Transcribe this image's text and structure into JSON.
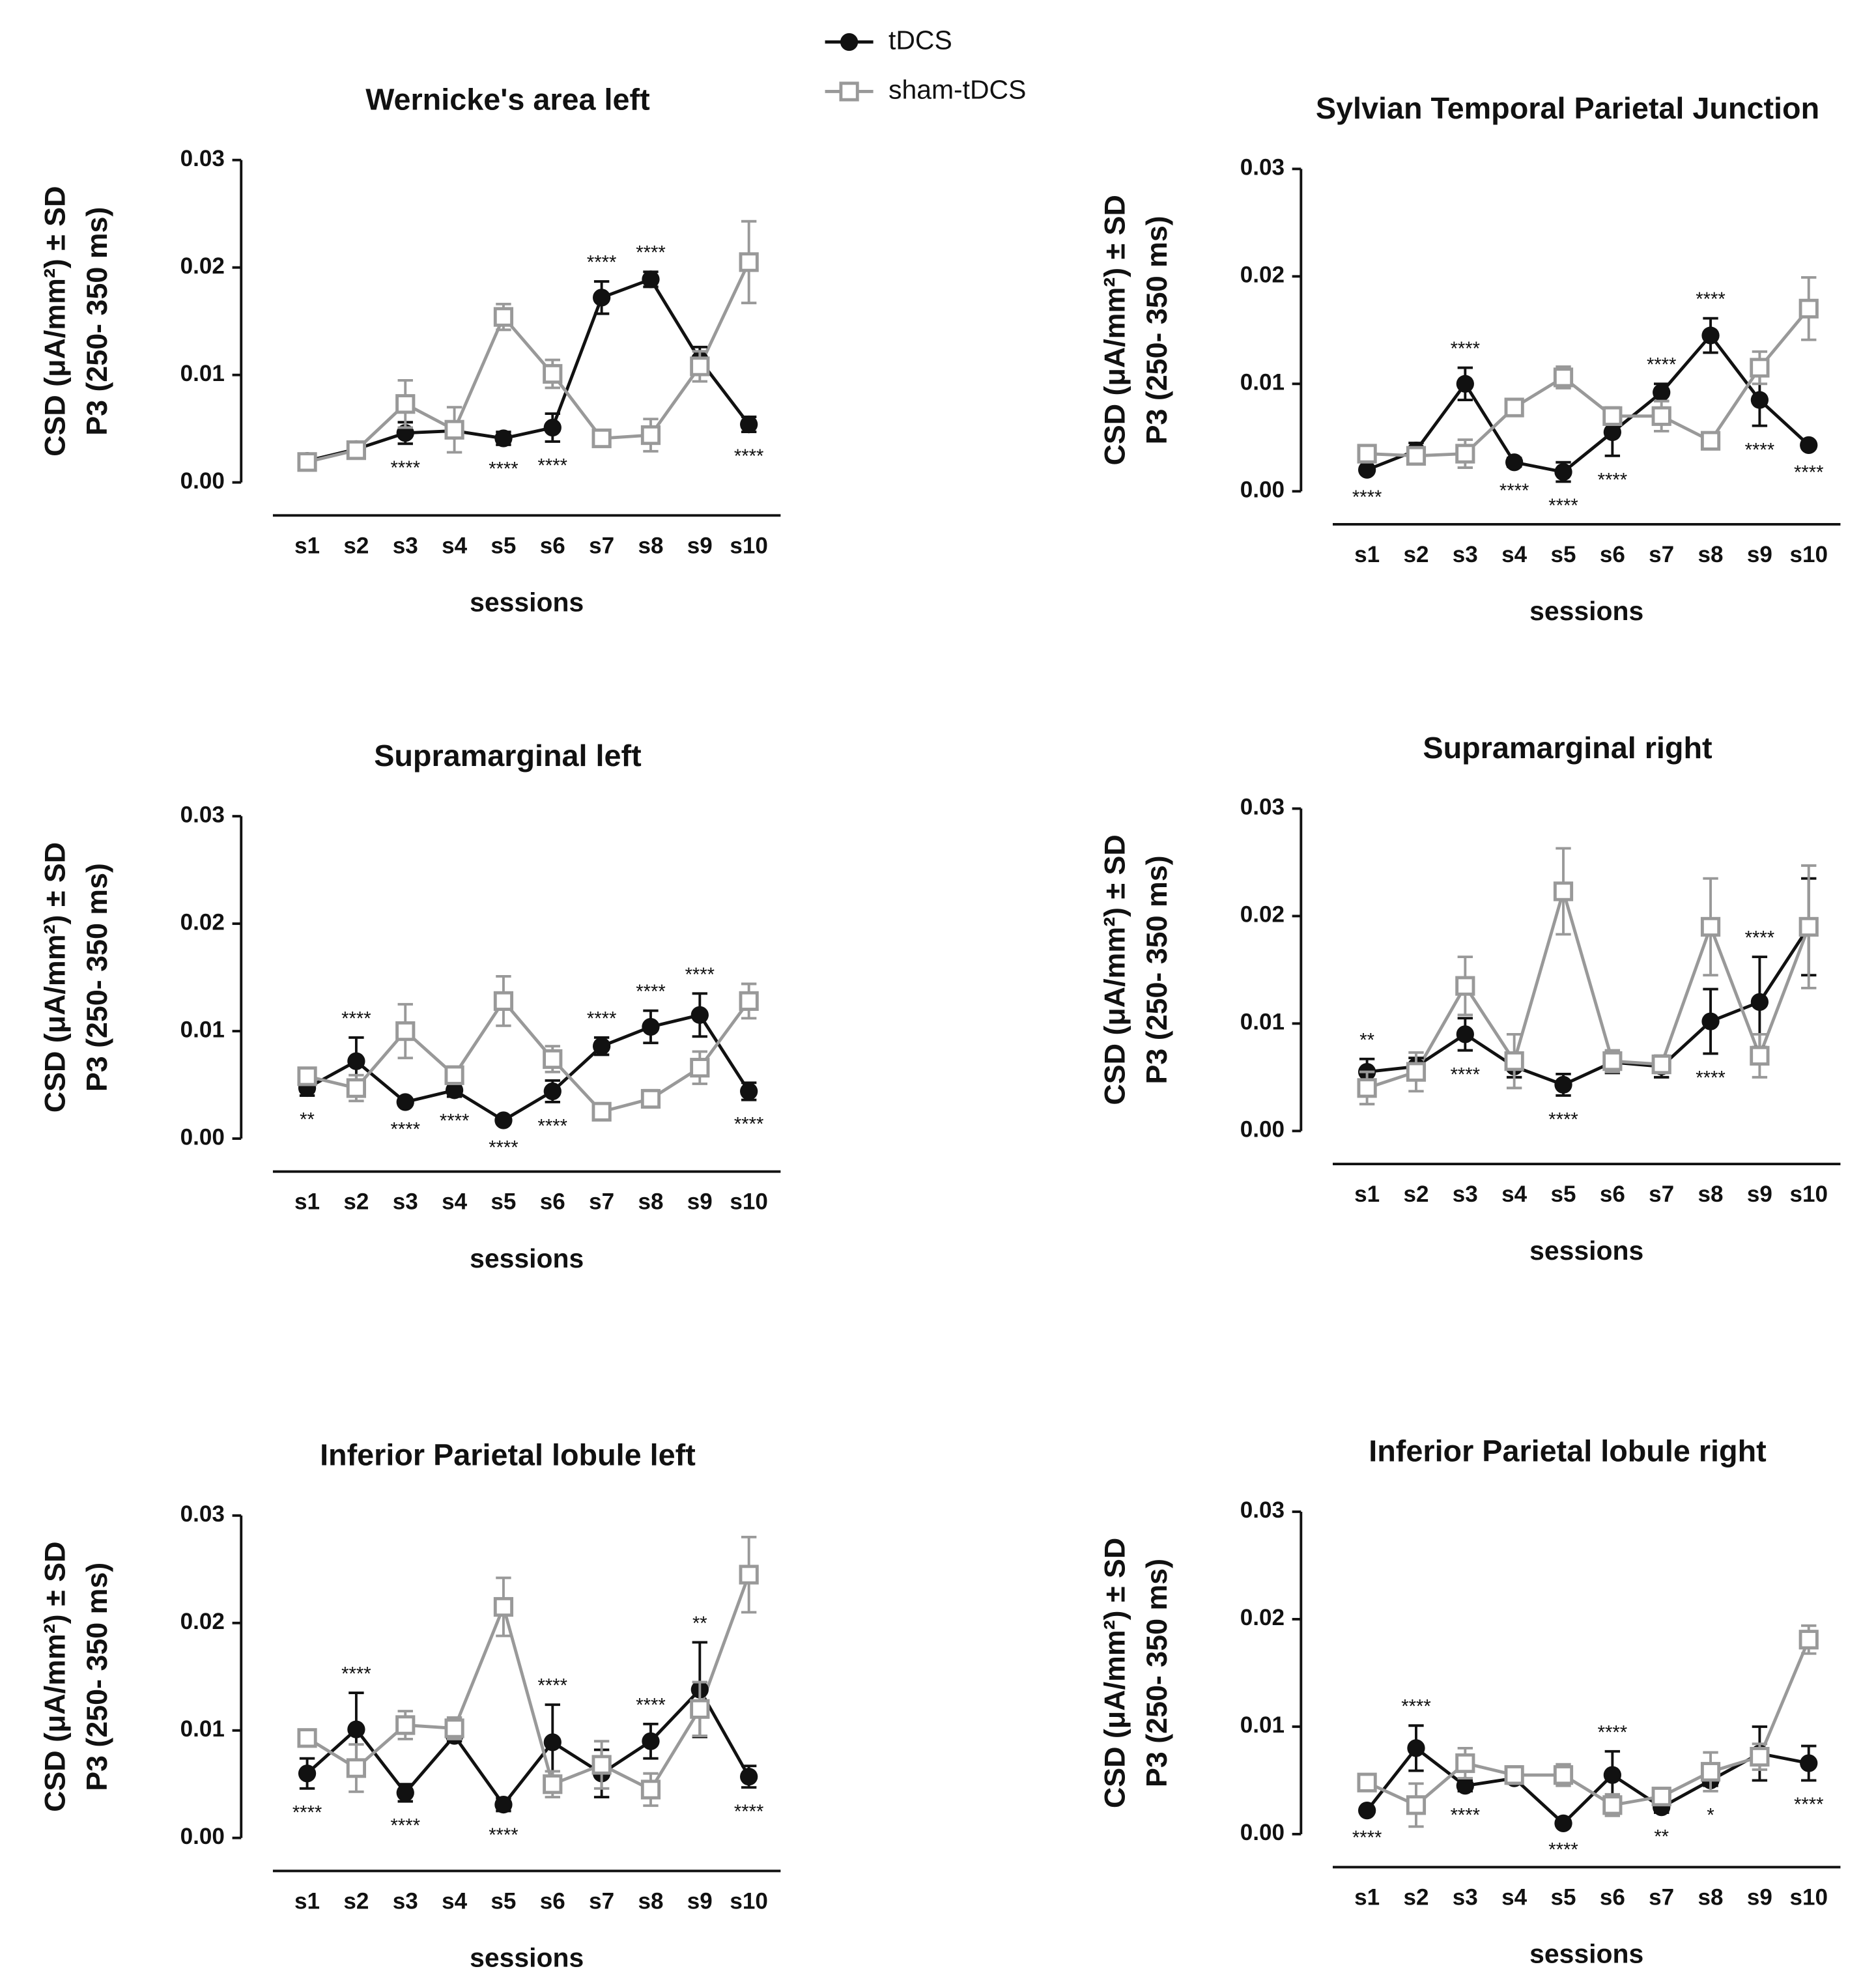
{
  "chart_data": [
    {
      "type": "line",
      "title": "Wernicke's area left",
      "ylabel": [
        "CSD (μA/mm²) ± SD",
        "P3 (250- 350 ms)"
      ],
      "xlabel": "sessions",
      "categories": [
        "s1",
        "s2",
        "s3",
        "s4",
        "s5",
        "s6",
        "s7",
        "s8",
        "s9",
        "s10"
      ],
      "ylim": [
        0,
        0.03
      ],
      "yticks": [
        {
          "value": 0,
          "label": "0.00"
        },
        0.01,
        0.02,
        0.03
      ],
      "series": [
        {
          "name": "tDCS",
          "color": "#111111",
          "values": [
            0.002,
            0.0031,
            0.0046,
            0.0048,
            0.0041,
            0.0051,
            0.0172,
            0.0189,
            0.0114,
            0.0054
          ],
          "errors": [
            0.0003,
            0.0003,
            0.001,
            0.0005,
            0.0006,
            0.0013,
            0.0015,
            0.0007,
            0.0012,
            0.0007
          ]
        },
        {
          "name": "sham-tDCS",
          "color": "#999999",
          "values": [
            0.0019,
            0.003,
            0.0073,
            0.0049,
            0.0154,
            0.0101,
            0.0041,
            0.0044,
            0.0108,
            0.0205
          ],
          "errors": [
            0.0003,
            0.0003,
            0.0022,
            0.0021,
            0.0012,
            0.0013,
            0.0003,
            0.0015,
            0.0014,
            0.0038
          ]
        }
      ],
      "significance": [
        null,
        null,
        "****",
        null,
        "****",
        "****",
        "****",
        "****",
        null,
        "****"
      ]
    },
    {
      "type": "line",
      "title": "Sylvian Temporal Parietal Junction",
      "ylabel": [
        "CSD (μA/mm²) ± SD",
        "P3 (250- 350 ms)"
      ],
      "xlabel": "sessions",
      "categories": [
        "s1",
        "s2",
        "s3",
        "s4",
        "s5",
        "s6",
        "s7",
        "s8",
        "s9",
        "s10"
      ],
      "ylim": [
        0,
        0.03
      ],
      "yticks": [
        {
          "value": 0,
          "label": "0.00"
        },
        0.01,
        0.02,
        0.03
      ],
      "series": [
        {
          "name": "tDCS",
          "color": "#111111",
          "values": [
            0.002,
            0.0038,
            0.01,
            0.0027,
            0.0018,
            0.0055,
            0.0092,
            0.0145,
            0.0085,
            0.0043
          ],
          "errors": [
            0.0003,
            0.0007,
            0.0015,
            0.0004,
            0.0009,
            0.0022,
            0.0008,
            0.0016,
            0.0024,
            0.0003
          ]
        },
        {
          "name": "sham-tDCS",
          "color": "#999999",
          "values": [
            0.0035,
            0.0033,
            0.0035,
            0.0078,
            0.0106,
            0.007,
            0.007,
            0.0047,
            0.0115,
            0.017
          ],
          "errors": [
            0.0004,
            0.0004,
            0.0013,
            0.0004,
            0.001,
            0.0008,
            0.0014,
            0.0005,
            0.0015,
            0.0029
          ]
        }
      ],
      "significance": [
        "****",
        null,
        "****",
        "****",
        "****",
        "****",
        "****",
        "****",
        "****",
        "****"
      ]
    },
    {
      "type": "line",
      "title": "Supramarginal left",
      "ylabel": [
        "CSD (μA/mm²) ± SD",
        "P3 (250- 350 ms)"
      ],
      "xlabel": "sessions",
      "categories": [
        "s1",
        "s2",
        "s3",
        "s4",
        "s5",
        "s6",
        "s7",
        "s8",
        "s9",
        "s10"
      ],
      "ylim": [
        0,
        0.03
      ],
      "yticks": [
        {
          "value": 0,
          "label": "0.00"
        },
        0.01,
        0.02,
        0.03
      ],
      "series": [
        {
          "name": "tDCS",
          "color": "#111111",
          "values": [
            0.0047,
            0.0072,
            0.0034,
            0.0045,
            0.0017,
            0.0044,
            0.0086,
            0.0104,
            0.0115,
            0.0044
          ],
          "errors": [
            0.0007,
            0.0022,
            0.0003,
            0.0006,
            0.0003,
            0.001,
            0.0008,
            0.0015,
            0.002,
            0.0008
          ]
        },
        {
          "name": "sham-tDCS",
          "color": "#999999",
          "values": [
            0.0058,
            0.0047,
            0.01,
            0.0059,
            0.0128,
            0.0074,
            0.0025,
            0.0037,
            0.0066,
            0.0128
          ],
          "errors": [
            0.0005,
            0.0012,
            0.0025,
            0.0008,
            0.0023,
            0.0012,
            0.0007,
            0.0008,
            0.0015,
            0.0016
          ]
        }
      ],
      "significance": [
        "**",
        "****",
        "****",
        "****",
        "****",
        "****",
        "****",
        "****",
        "****",
        "****"
      ]
    },
    {
      "type": "line",
      "title": "Supramarginal right",
      "ylabel": [
        "CSD (μA/mm²) ± SD",
        "P3 (250- 350 ms)"
      ],
      "xlabel": "sessions",
      "categories": [
        "s1",
        "s2",
        "s3",
        "s4",
        "s5",
        "s6",
        "s7",
        "s8",
        "s9",
        "s10"
      ],
      "ylim": [
        0,
        0.03
      ],
      "yticks": [
        {
          "value": 0,
          "label": "0.00"
        },
        0.01,
        0.02,
        0.03
      ],
      "series": [
        {
          "name": "tDCS",
          "color": "#111111",
          "values": [
            0.0055,
            0.006,
            0.009,
            0.006,
            0.0043,
            0.0064,
            0.006,
            0.0102,
            0.012,
            0.019
          ],
          "errors": [
            0.0012,
            0.0008,
            0.0015,
            0.001,
            0.001,
            0.001,
            0.001,
            0.003,
            0.0042,
            0.0045
          ]
        },
        {
          "name": "sham-tDCS",
          "color": "#999999",
          "values": [
            0.004,
            0.0055,
            0.0135,
            0.0065,
            0.0223,
            0.0065,
            0.0062,
            0.019,
            0.007,
            0.019
          ],
          "errors": [
            0.0015,
            0.0018,
            0.0027,
            0.0025,
            0.004,
            0.001,
            0.0008,
            0.0045,
            0.002,
            0.0057
          ]
        }
      ],
      "significance": [
        "**",
        null,
        "****",
        null,
        "****",
        null,
        null,
        "****",
        "****",
        null
      ]
    },
    {
      "type": "line",
      "title": "Inferior Parietal lobule left",
      "ylabel": [
        "CSD (μA/mm²) ± SD",
        "P3 (250- 350 ms)"
      ],
      "xlabel": "sessions",
      "categories": [
        "s1",
        "s2",
        "s3",
        "s4",
        "s5",
        "s6",
        "s7",
        "s8",
        "s9",
        "s10"
      ],
      "ylim": [
        0,
        0.03
      ],
      "yticks": [
        {
          "value": 0,
          "label": "0.00"
        },
        0.01,
        0.02,
        0.03
      ],
      "series": [
        {
          "name": "tDCS",
          "color": "#111111",
          "values": [
            0.006,
            0.0101,
            0.0042,
            0.0095,
            0.0031,
            0.0089,
            0.006,
            0.009,
            0.0138,
            0.0057
          ],
          "errors": [
            0.0014,
            0.0034,
            0.0008,
            0.0005,
            0.0006,
            0.0035,
            0.0022,
            0.0016,
            0.0044,
            0.001
          ]
        },
        {
          "name": "sham-tDCS",
          "color": "#999999",
          "values": [
            0.0093,
            0.0065,
            0.0105,
            0.0102,
            0.0215,
            0.005,
            0.0068,
            0.0045,
            0.012,
            0.0245
          ],
          "errors": [
            0.0005,
            0.0022,
            0.0013,
            0.001,
            0.0027,
            0.0012,
            0.0022,
            0.0015,
            0.0025,
            0.0035
          ]
        }
      ],
      "significance": [
        "****",
        "****",
        "****",
        null,
        "****",
        "****",
        null,
        "****",
        "**",
        "****"
      ]
    },
    {
      "type": "line",
      "title": "Inferior Parietal lobule right",
      "ylabel": [
        "CSD (μA/mm²) ± SD",
        "P3 (250- 350 ms)"
      ],
      "xlabel": "sessions",
      "categories": [
        "s1",
        "s2",
        "s3",
        "s4",
        "s5",
        "s6",
        "s7",
        "s8",
        "s9",
        "s10"
      ],
      "ylim": [
        0,
        0.03
      ],
      "yticks": [
        {
          "value": 0,
          "label": "0.00"
        },
        0.01,
        0.02,
        0.03
      ],
      "series": [
        {
          "name": "tDCS",
          "color": "#111111",
          "values": [
            0.0022,
            0.008,
            0.0045,
            0.0052,
            0.001,
            0.0055,
            0.0025,
            0.005,
            0.0075,
            0.0066
          ],
          "errors": [
            0.0003,
            0.0021,
            0.0005,
            0.0005,
            0.0002,
            0.0022,
            0.0005,
            0.0005,
            0.0025,
            0.0016
          ]
        },
        {
          "name": "sham-tDCS",
          "color": "#999999",
          "values": [
            0.0048,
            0.0027,
            0.0066,
            0.0055,
            0.0055,
            0.0027,
            0.0035,
            0.0058,
            0.0072,
            0.0181
          ],
          "errors": [
            0.0005,
            0.002,
            0.0014,
            0.0008,
            0.001,
            0.001,
            0.0004,
            0.0018,
            0.0012,
            0.0013
          ]
        }
      ],
      "significance": [
        "****",
        "****",
        "****",
        null,
        "****",
        "****",
        "**",
        "*",
        null,
        "****"
      ]
    }
  ]
}
